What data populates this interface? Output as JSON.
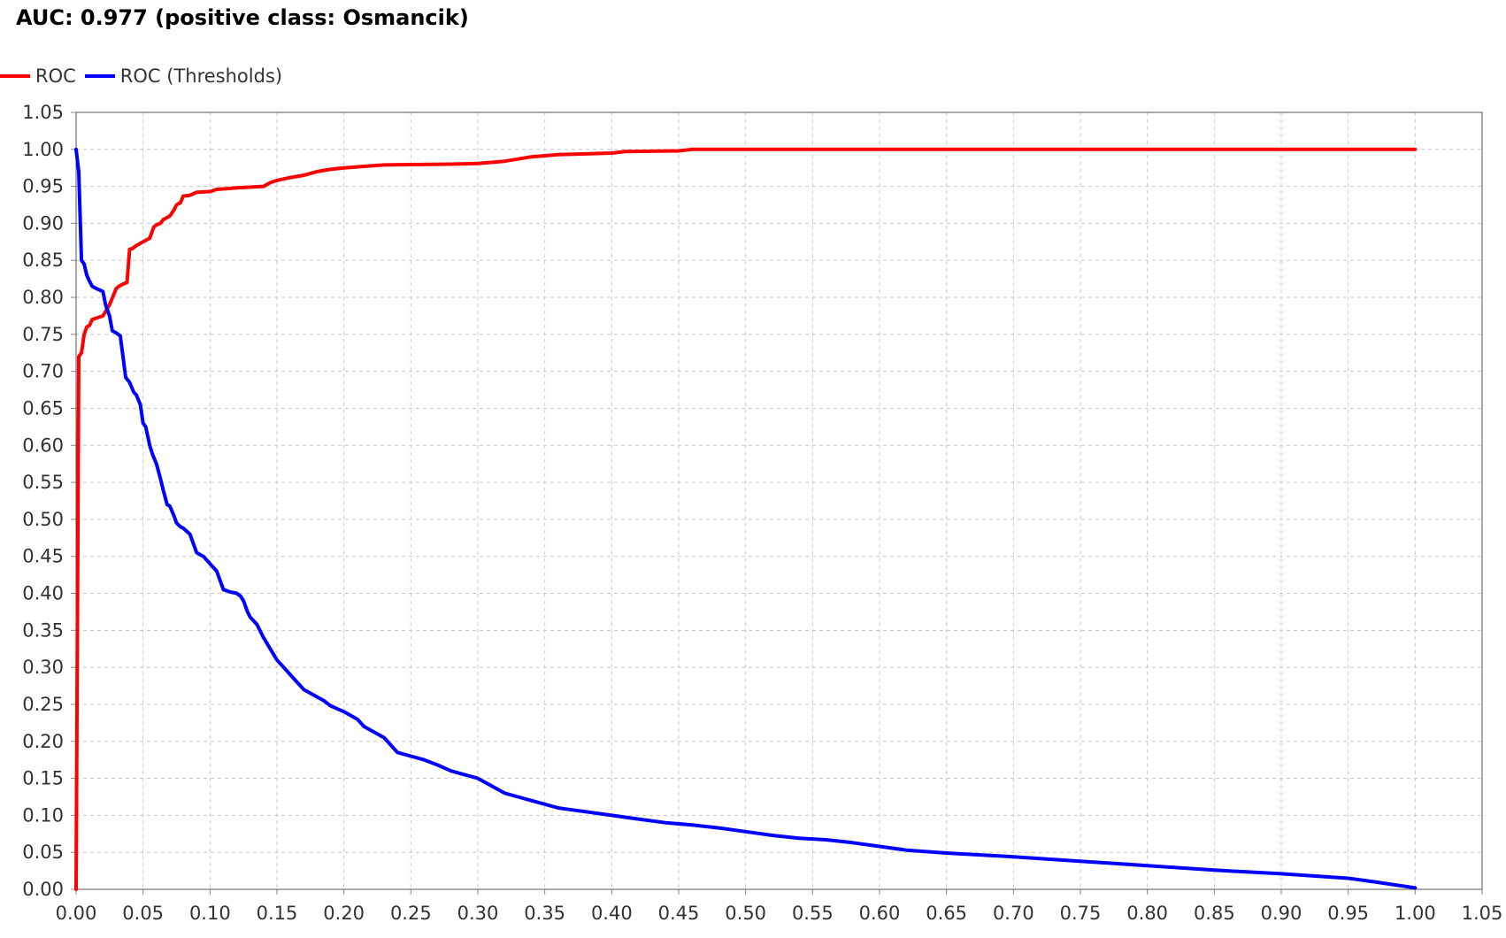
{
  "chart_data": {
    "type": "line",
    "title": "AUC: 0.977 (positive class: Osmancik)",
    "xlabel": "",
    "ylabel": "",
    "xlim": [
      0,
      1.05
    ],
    "ylim": [
      0,
      1.05
    ],
    "grid": true,
    "legend_position": "top-left",
    "x_ticks": [
      "0.00",
      "0.05",
      "0.10",
      "0.15",
      "0.20",
      "0.25",
      "0.30",
      "0.35",
      "0.40",
      "0.45",
      "0.50",
      "0.55",
      "0.60",
      "0.65",
      "0.70",
      "0.75",
      "0.80",
      "0.85",
      "0.90",
      "0.95",
      "1.00",
      "1.05"
    ],
    "y_ticks": [
      "0.00",
      "0.05",
      "0.10",
      "0.15",
      "0.20",
      "0.25",
      "0.30",
      "0.35",
      "0.40",
      "0.45",
      "0.50",
      "0.55",
      "0.60",
      "0.65",
      "0.70",
      "0.75",
      "0.80",
      "0.85",
      "0.90",
      "0.95",
      "1.00",
      "1.05"
    ],
    "series": [
      {
        "name": "ROC",
        "color": "#ff0000",
        "x": [
          0.0,
          0.002,
          0.004,
          0.006,
          0.008,
          0.01,
          0.012,
          0.015,
          0.02,
          0.025,
          0.03,
          0.032,
          0.035,
          0.038,
          0.04,
          0.042,
          0.045,
          0.05,
          0.055,
          0.058,
          0.06,
          0.063,
          0.065,
          0.07,
          0.073,
          0.075,
          0.078,
          0.08,
          0.085,
          0.09,
          0.1,
          0.105,
          0.12,
          0.14,
          0.145,
          0.15,
          0.16,
          0.17,
          0.18,
          0.19,
          0.2,
          0.215,
          0.23,
          0.28,
          0.3,
          0.32,
          0.33,
          0.34,
          0.36,
          0.4,
          0.41,
          0.45,
          0.46,
          0.5,
          1.0
        ],
        "y": [
          0.0,
          0.72,
          0.725,
          0.75,
          0.76,
          0.762,
          0.77,
          0.772,
          0.775,
          0.79,
          0.812,
          0.815,
          0.818,
          0.82,
          0.865,
          0.866,
          0.87,
          0.875,
          0.88,
          0.895,
          0.898,
          0.9,
          0.905,
          0.91,
          0.918,
          0.925,
          0.928,
          0.937,
          0.938,
          0.942,
          0.943,
          0.946,
          0.948,
          0.95,
          0.955,
          0.958,
          0.962,
          0.965,
          0.97,
          0.973,
          0.975,
          0.977,
          0.979,
          0.98,
          0.981,
          0.984,
          0.987,
          0.99,
          0.993,
          0.995,
          0.997,
          0.998,
          1.0,
          1.0,
          1.0
        ]
      },
      {
        "name": "ROC (Thresholds)",
        "color": "#0000ff",
        "x": [
          0.0,
          0.002,
          0.004,
          0.006,
          0.008,
          0.01,
          0.012,
          0.015,
          0.02,
          0.022,
          0.025,
          0.027,
          0.03,
          0.033,
          0.035,
          0.037,
          0.04,
          0.043,
          0.045,
          0.048,
          0.05,
          0.052,
          0.055,
          0.057,
          0.06,
          0.063,
          0.065,
          0.068,
          0.07,
          0.073,
          0.075,
          0.078,
          0.08,
          0.085,
          0.088,
          0.09,
          0.095,
          0.1,
          0.105,
          0.11,
          0.115,
          0.12,
          0.123,
          0.125,
          0.128,
          0.13,
          0.135,
          0.14,
          0.145,
          0.15,
          0.155,
          0.16,
          0.165,
          0.17,
          0.175,
          0.18,
          0.185,
          0.19,
          0.2,
          0.21,
          0.215,
          0.225,
          0.23,
          0.235,
          0.24,
          0.25,
          0.26,
          0.27,
          0.28,
          0.3,
          0.31,
          0.32,
          0.33,
          0.34,
          0.35,
          0.36,
          0.38,
          0.4,
          0.42,
          0.44,
          0.46,
          0.48,
          0.5,
          0.52,
          0.54,
          0.56,
          0.58,
          0.6,
          0.62,
          0.65,
          0.7,
          0.75,
          0.8,
          0.85,
          0.9,
          0.95,
          0.97,
          1.0
        ],
        "y": [
          1.0,
          0.97,
          0.85,
          0.845,
          0.83,
          0.822,
          0.815,
          0.812,
          0.808,
          0.79,
          0.775,
          0.755,
          0.752,
          0.748,
          0.72,
          0.692,
          0.685,
          0.672,
          0.668,
          0.655,
          0.63,
          0.625,
          0.6,
          0.588,
          0.575,
          0.555,
          0.54,
          0.52,
          0.518,
          0.505,
          0.495,
          0.49,
          0.488,
          0.48,
          0.465,
          0.455,
          0.45,
          0.44,
          0.43,
          0.405,
          0.402,
          0.4,
          0.396,
          0.39,
          0.375,
          0.368,
          0.358,
          0.34,
          0.325,
          0.31,
          0.3,
          0.29,
          0.28,
          0.27,
          0.265,
          0.26,
          0.255,
          0.248,
          0.24,
          0.23,
          0.22,
          0.21,
          0.205,
          0.195,
          0.185,
          0.18,
          0.175,
          0.168,
          0.16,
          0.15,
          0.14,
          0.13,
          0.125,
          0.12,
          0.115,
          0.11,
          0.105,
          0.1,
          0.095,
          0.09,
          0.087,
          0.083,
          0.078,
          0.073,
          0.069,
          0.067,
          0.063,
          0.058,
          0.053,
          0.049,
          0.044,
          0.038,
          0.032,
          0.026,
          0.021,
          0.015,
          0.01,
          0.002
        ]
      }
    ]
  }
}
